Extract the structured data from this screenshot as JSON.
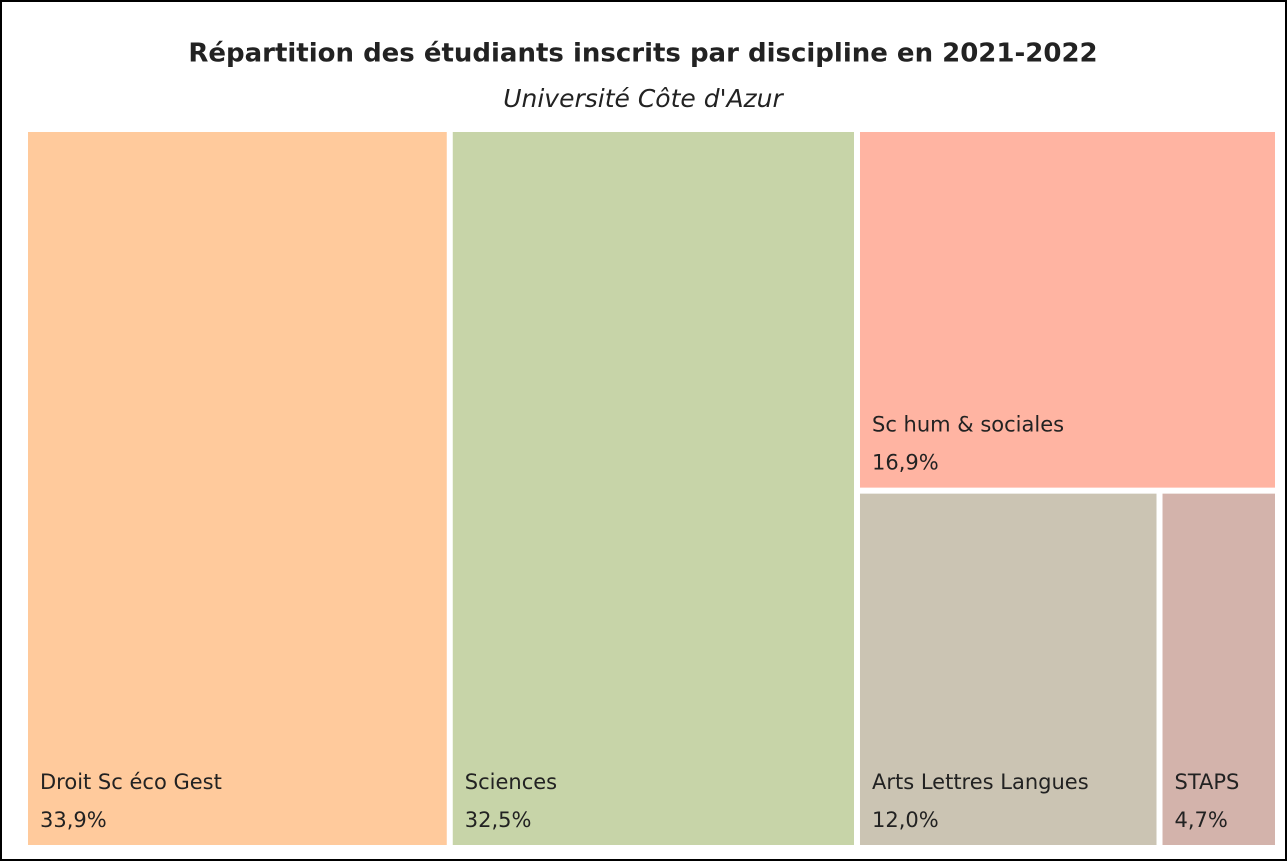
{
  "chart_data": {
    "type": "treemap",
    "title": "Répartition des étudiants inscrits par discipline en 2021-2022",
    "subtitle": "Université Côte d'Azur",
    "categories": [
      "Droit Sc éco Gest",
      "Sciences",
      "Sc hum & sociales",
      "Arts Lettres Langues",
      "STAPS"
    ],
    "values": [
      33.9,
      32.5,
      16.9,
      12.0,
      4.7
    ],
    "value_labels": [
      "33,9%",
      "32,5%",
      "16,9%",
      "12,0%",
      "4,7%"
    ],
    "colors": [
      "#ffca9c",
      "#c7d4a8",
      "#ffb4a2",
      "#cbc4b3",
      "#d3b3ab"
    ]
  }
}
